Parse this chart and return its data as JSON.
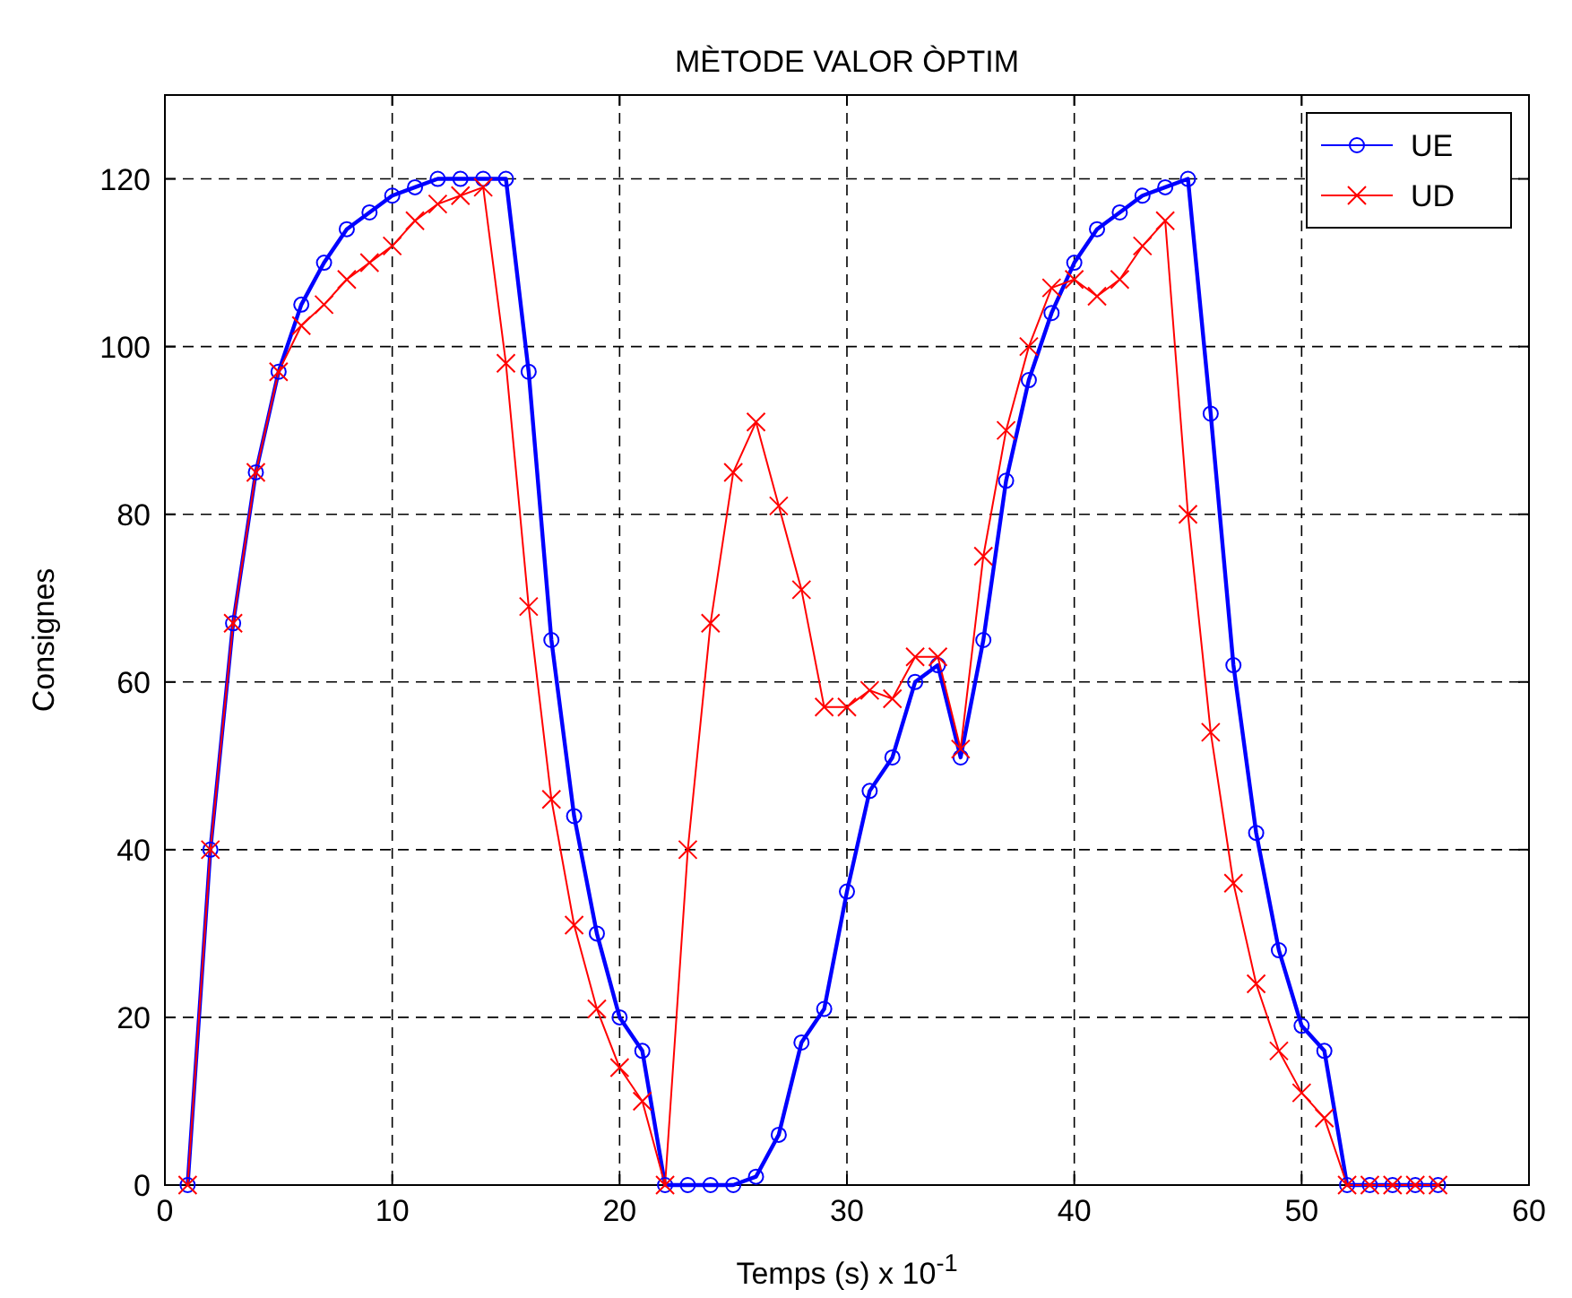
{
  "chart_data": {
    "type": "line",
    "title": "MÈTODE VALOR ÒPTIM",
    "xlabel": "Temps (s) x 10$^{-1}$",
    "ylabel": "Consignes",
    "x": [
      1,
      2,
      3,
      4,
      5,
      6,
      7,
      8,
      9,
      10,
      11,
      12,
      13,
      14,
      15,
      16,
      17,
      18,
      19,
      20,
      21,
      22,
      23,
      24,
      25,
      26,
      27,
      28,
      29,
      30,
      31,
      32,
      33,
      34,
      35,
      36,
      37,
      38,
      39,
      40,
      41,
      42,
      43,
      44,
      45,
      46,
      47,
      48,
      49,
      50,
      51,
      52,
      53,
      54,
      55,
      56
    ],
    "series": [
      {
        "name": "UE",
        "color": "#0000ff",
        "marker": "circle",
        "values": [
          0,
          40,
          67,
          85,
          97,
          105,
          110,
          114,
          116,
          118,
          119,
          120,
          120,
          120,
          120,
          97,
          65,
          44,
          30,
          20,
          16,
          0,
          0,
          0,
          0,
          1,
          6,
          17,
          21,
          35,
          47,
          51,
          60,
          62,
          51,
          65,
          84,
          96,
          104,
          110,
          114,
          116,
          118,
          119,
          120,
          92,
          62,
          42,
          28,
          19,
          16,
          0,
          0,
          0,
          0,
          0
        ]
      },
      {
        "name": "UD",
        "color": "#ff0000",
        "marker": "cross",
        "values": [
          0,
          40,
          67,
          85,
          97,
          102.5,
          105,
          108,
          110,
          112,
          115,
          117,
          118,
          119,
          98,
          69,
          46,
          31,
          21,
          14,
          10,
          0,
          40,
          67,
          85,
          91,
          81,
          71,
          57,
          57,
          59,
          58,
          63,
          63,
          52,
          75,
          90,
          100,
          107,
          108,
          106,
          108,
          112,
          115,
          80,
          54,
          36,
          24,
          16,
          11,
          8,
          0,
          0,
          0,
          0,
          0
        ]
      }
    ],
    "xlim": [
      0,
      60
    ],
    "xticks": [
      0,
      10,
      20,
      30,
      40,
      50,
      60
    ],
    "ylim": [
      0,
      130
    ],
    "yticks": [
      0,
      20,
      40,
      60,
      80,
      100,
      120
    ],
    "grid": true,
    "legend": "top right",
    "line_style": "solid"
  }
}
